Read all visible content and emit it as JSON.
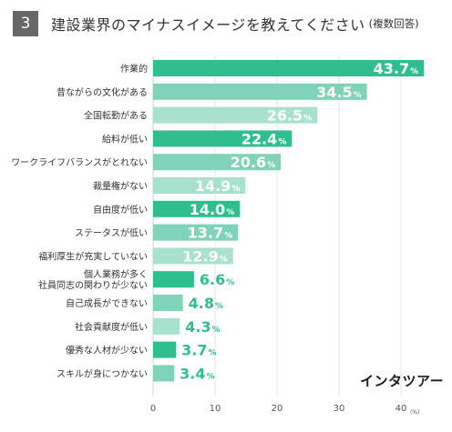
{
  "header": {
    "number": "3",
    "title": "建設業界のマイナスイメージを教えてください",
    "title_note": "(複数回答)"
  },
  "brand": "インタツアー",
  "chart_data": {
    "type": "bar",
    "orientation": "horizontal",
    "categories": [
      "作業的",
      "昔ながらの文化がある",
      "全国転勤がある",
      "給料が低い",
      "ワークライフバランスがとれない",
      "裁量権がない",
      "自由度が低い",
      "ステータスが低い",
      "福利厚生が充実していない",
      "個人業務が多く\n社員同志の関わりが少ない",
      "自己成長ができない",
      "社会貢献度が低い",
      "優秀な人材が少ない",
      "スキルが身につかない"
    ],
    "values": [
      43.7,
      34.5,
      26.5,
      22.4,
      20.6,
      14.9,
      14.0,
      13.7,
      12.9,
      6.6,
      4.8,
      4.3,
      3.7,
      3.4
    ],
    "value_unit": "%",
    "bar_colors": [
      "#2fbf8f",
      "#7fd3b8",
      "#a8e2cf",
      "#2fbf8f",
      "#7fd3b8",
      "#a8e2cf",
      "#2fbf8f",
      "#7fd3b8",
      "#a8e2cf",
      "#2fbf8f",
      "#7fd3b8",
      "#a8e2cf",
      "#2fbf8f",
      "#7fd3b8"
    ],
    "xlim": [
      0,
      46
    ],
    "xticks": [
      0,
      10,
      20,
      30,
      40
    ],
    "x_unit_label": "(%)",
    "grid": true,
    "label_text_color": "#ffffff",
    "outside_label_color": "#2fbf8f"
  }
}
